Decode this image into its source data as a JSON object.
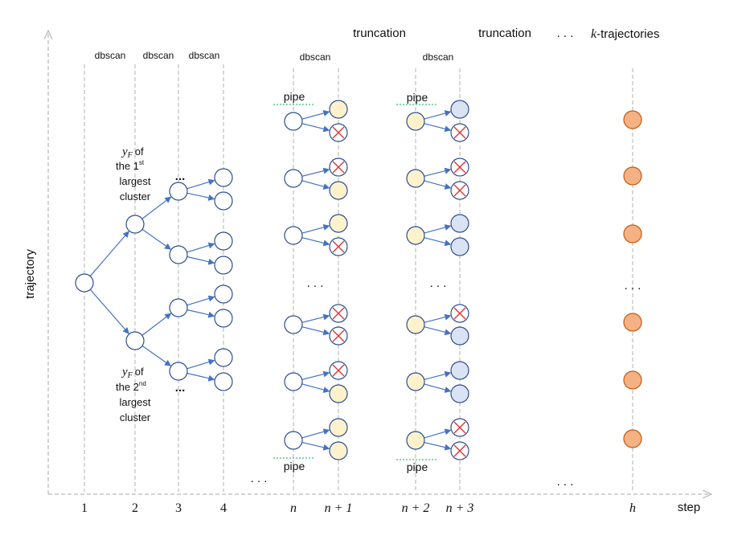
{
  "axes": {
    "y_label": "trajectory",
    "x_label": "step",
    "x_ticks": [
      {
        "text": "1",
        "italic": false
      },
      {
        "text": "2",
        "italic": false
      },
      {
        "text": "3",
        "italic": false
      },
      {
        "text": "4",
        "italic": false
      },
      {
        "text": "n",
        "italic": true
      },
      {
        "text": "n + 1",
        "italic": true
      },
      {
        "text": "n + 2",
        "italic": true
      },
      {
        "text": "n + 3",
        "italic": true
      },
      {
        "text": "h",
        "italic": true
      }
    ]
  },
  "top_labels": {
    "dbscan": "dbscan",
    "truncation_1": "truncation",
    "truncation_2": "truncation",
    "ellipsis": ". . .",
    "k_trajectories_k": "k",
    "k_trajectories_rest": "-trajectories"
  },
  "annotations": {
    "first_cluster": {
      "var": "y",
      "sub": "F",
      "of": "of",
      "the": "the 1",
      "sup": "st",
      "line2": "largest",
      "line3": "cluster"
    },
    "second_cluster": {
      "var": "y",
      "sub": "F",
      "of": "of",
      "the": "the 2",
      "sup": "nd",
      "line2": "largest",
      "line3": "cluster"
    },
    "pipe": "pipe",
    "ellipsis_small": "...",
    "ellipsis": ". . ."
  },
  "colors": {
    "node_stroke": "#2e4e8f",
    "edge": "#4472c4",
    "yellow_fill": "#fdf2cc",
    "blue_fill": "#dae3f3",
    "orange_fill": "#f4b183",
    "orange_stroke": "#c55a11",
    "cross": "#e03030",
    "pipe_line": "#00b050",
    "guide": "#b0b0b0"
  },
  "columns": {
    "n1_states": [
      "yellow",
      "cross",
      "cross",
      "yellow",
      "yellow",
      "cross",
      "cross",
      "cross",
      "cross",
      "yellow",
      "yellow",
      "yellow"
    ],
    "n3_states": [
      "blue",
      "cross",
      "cross",
      "cross",
      "blue",
      "blue",
      "cross",
      "blue",
      "blue",
      "blue",
      "cross",
      "cross"
    ]
  }
}
